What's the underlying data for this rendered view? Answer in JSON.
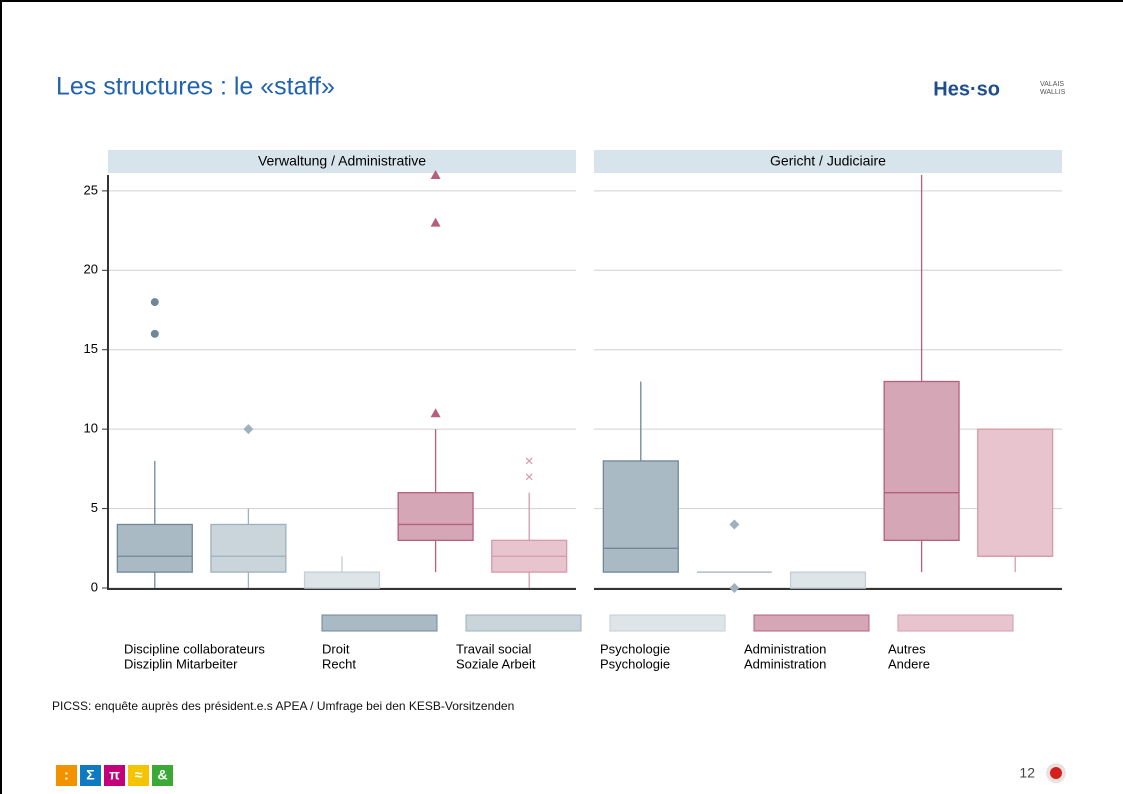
{
  "header": {
    "title": "Les structures : le «staff»",
    "logo": "Hes·so",
    "logo_region": [
      "VALAIS",
      "WALLIS"
    ]
  },
  "chart_data": {
    "type": "box",
    "facets": [
      "Verwaltung / Administrative",
      "Gericht / Judiciaire"
    ],
    "ylim": [
      0,
      26
    ],
    "yticks": [
      0,
      5,
      10,
      15,
      20,
      25
    ],
    "grid": true,
    "legend_title": [
      "Discipline collaborateurs",
      "Disziplin Mitarbeiter"
    ],
    "series": [
      {
        "name": [
          "Droit",
          "Recht"
        ],
        "color": "#a9bac5",
        "stroke": "#6f8797",
        "marker": "circle",
        "stats": [
          {
            "low": 0,
            "q1": 1,
            "median": 2,
            "q3": 4,
            "high": 8,
            "outliers": [
              16,
              18
            ]
          },
          {
            "low": 1,
            "q1": 1,
            "median": 2.5,
            "q3": 8,
            "high": 13,
            "outliers": []
          }
        ]
      },
      {
        "name": [
          "Travail social",
          "Soziale Arbeit"
        ],
        "color": "#c9d4db",
        "stroke": "#9fb1bc",
        "marker": "diamond",
        "stats": [
          {
            "low": 0,
            "q1": 1,
            "median": 2,
            "q3": 4,
            "high": 5,
            "outliers": [
              10
            ]
          },
          {
            "low": 1,
            "q1": 1,
            "median": 1,
            "q3": 1,
            "high": 1,
            "outliers": [
              4,
              0
            ]
          }
        ]
      },
      {
        "name": [
          "Psychologie",
          "Psychologie"
        ],
        "color": "#dee5e9",
        "stroke": "#c3ced5",
        "marker": "circle",
        "stats": [
          {
            "low": 0,
            "q1": 0,
            "median": 0,
            "q3": 1,
            "high": 2,
            "outliers": []
          },
          {
            "low": 0,
            "q1": 0,
            "median": 0,
            "q3": 1,
            "high": 1,
            "outliers": []
          }
        ]
      },
      {
        "name": [
          "Administration",
          "Administration"
        ],
        "color": "#d4a6b6",
        "stroke": "#b5607a",
        "marker": "triangle",
        "stats": [
          {
            "low": 1,
            "q1": 3,
            "median": 4,
            "q3": 6,
            "high": 10,
            "outliers": [
              11,
              23,
              26
            ]
          },
          {
            "low": 1,
            "q1": 3,
            "median": 6,
            "q3": 13,
            "high": 26,
            "outliers": []
          }
        ]
      },
      {
        "name": [
          "Autres",
          "Andere"
        ],
        "color": "#e7c4ce",
        "stroke": "#d59aab",
        "marker": "x",
        "stats": [
          {
            "low": 0,
            "q1": 1,
            "median": 2,
            "q3": 3,
            "high": 6,
            "outliers": [
              7,
              8
            ]
          },
          {
            "low": 1,
            "q1": 2,
            "median": 2,
            "q3": 10,
            "high": 10,
            "outliers": []
          }
        ]
      }
    ]
  },
  "source": "PICSS: enquête auprès des président.e.s APEA / Umfrage bei den KESB-Vorsitzenden",
  "footer": {
    "icons": [
      ":",
      "Σ",
      "π",
      "≈",
      "&"
    ],
    "page": "12"
  }
}
